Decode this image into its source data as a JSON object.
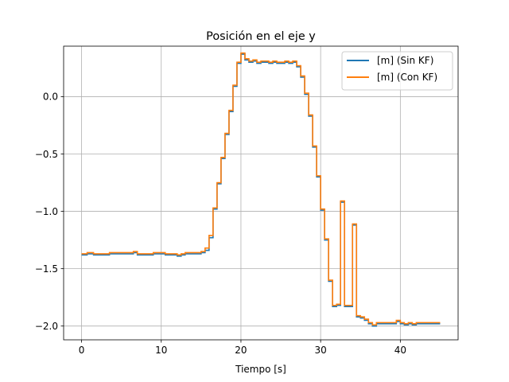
{
  "chart_data": {
    "type": "line",
    "title": "Posición en el eje y",
    "xlabel": "Tiempo [s]",
    "ylabel": "",
    "xlim": [
      -2.25,
      47.25
    ],
    "ylim": [
      -2.12,
      0.44
    ],
    "xticks": [
      0,
      10,
      20,
      30,
      40
    ],
    "xtick_labels": [
      "0",
      "10",
      "20",
      "30",
      "40"
    ],
    "yticks": [
      -2.0,
      -1.5,
      -1.0,
      -0.5,
      0.0
    ],
    "ytick_labels": [
      "−2.0",
      "−1.5",
      "−1.0",
      "−0.5",
      "0.0"
    ],
    "grid": true,
    "legend_position": "top-right",
    "step": true,
    "series": [
      {
        "name": "[m] (Sin KF)",
        "color": "#1f77b4",
        "x": [
          0,
          0.7,
          1.5,
          2.5,
          3.5,
          4.5,
          5.5,
          6.5,
          7,
          8,
          9,
          9.5,
          10.5,
          11.5,
          12,
          12.5,
          13,
          14,
          15,
          15.5,
          16,
          16.5,
          17,
          17.5,
          18,
          18.5,
          19,
          19.5,
          20,
          20.5,
          21,
          21.5,
          22,
          22.5,
          23,
          23.5,
          24,
          24.5,
          25,
          25.5,
          26,
          26.5,
          27,
          27.5,
          28,
          28.5,
          29,
          29.5,
          30,
          30.5,
          31,
          31.5,
          32,
          32.5,
          33,
          33.5,
          34,
          34.5,
          35,
          35.5,
          36,
          36.5,
          37,
          37.5,
          38,
          38.5,
          39,
          39.5,
          40,
          40.5,
          41,
          41.5,
          42,
          42.5,
          43,
          43.5,
          44,
          44.5,
          45
        ],
        "y": [
          -1.38,
          -1.37,
          -1.38,
          -1.38,
          -1.37,
          -1.37,
          -1.37,
          -1.36,
          -1.38,
          -1.38,
          -1.37,
          -1.37,
          -1.38,
          -1.38,
          -1.39,
          -1.38,
          -1.37,
          -1.37,
          -1.36,
          -1.34,
          -1.23,
          -0.98,
          -0.76,
          -0.54,
          -0.33,
          -0.13,
          0.09,
          0.29,
          0.37,
          0.32,
          0.3,
          0.31,
          0.29,
          0.3,
          0.3,
          0.29,
          0.3,
          0.29,
          0.29,
          0.3,
          0.29,
          0.3,
          0.26,
          0.17,
          0.02,
          -0.17,
          -0.44,
          -0.7,
          -0.99,
          -1.25,
          -1.61,
          -1.83,
          -1.82,
          -0.92,
          -1.83,
          -1.83,
          -1.12,
          -1.92,
          -1.93,
          -1.95,
          -1.98,
          -2.0,
          -1.98,
          -1.98,
          -1.98,
          -1.98,
          -1.98,
          -1.96,
          -1.98,
          -1.99,
          -1.98,
          -1.99,
          -1.98,
          -1.98,
          -1.98,
          -1.98,
          -1.98,
          -1.98,
          -1.98
        ]
      },
      {
        "name": "[m] (Con KF)",
        "color": "#ff7f0e",
        "x": [
          0,
          0.7,
          1.5,
          2.5,
          3.5,
          4.5,
          5.5,
          6.5,
          7,
          8,
          9,
          9.5,
          10.5,
          11.5,
          12,
          12.5,
          13,
          14,
          15,
          15.5,
          16,
          16.5,
          17,
          17.5,
          18,
          18.5,
          19,
          19.5,
          20,
          20.5,
          21,
          21.5,
          22,
          22.5,
          23,
          23.5,
          24,
          24.5,
          25,
          25.5,
          26,
          26.5,
          27,
          27.5,
          28,
          28.5,
          29,
          29.5,
          30,
          30.5,
          31,
          31.5,
          32,
          32.5,
          33,
          33.5,
          34,
          34.5,
          35,
          35.5,
          36,
          36.5,
          37,
          37.5,
          38,
          38.5,
          39,
          39.5,
          40,
          40.5,
          41,
          41.5,
          42,
          42.5,
          43,
          43.5,
          44,
          44.5,
          45
        ],
        "y": [
          -1.37,
          -1.36,
          -1.37,
          -1.37,
          -1.36,
          -1.36,
          -1.36,
          -1.35,
          -1.37,
          -1.37,
          -1.36,
          -1.36,
          -1.37,
          -1.37,
          -1.38,
          -1.37,
          -1.36,
          -1.36,
          -1.35,
          -1.32,
          -1.21,
          -0.97,
          -0.75,
          -0.53,
          -0.32,
          -0.12,
          0.1,
          0.3,
          0.38,
          0.33,
          0.31,
          0.32,
          0.3,
          0.31,
          0.31,
          0.3,
          0.31,
          0.3,
          0.3,
          0.31,
          0.3,
          0.31,
          0.27,
          0.18,
          0.03,
          -0.16,
          -0.43,
          -0.69,
          -0.98,
          -1.24,
          -1.6,
          -1.82,
          -1.81,
          -0.91,
          -1.82,
          -1.82,
          -1.11,
          -1.91,
          -1.92,
          -1.94,
          -1.97,
          -1.99,
          -1.97,
          -1.97,
          -1.97,
          -1.97,
          -1.97,
          -1.95,
          -1.97,
          -1.98,
          -1.97,
          -1.98,
          -1.97,
          -1.97,
          -1.97,
          -1.97,
          -1.97,
          -1.97,
          -1.97
        ]
      }
    ]
  }
}
